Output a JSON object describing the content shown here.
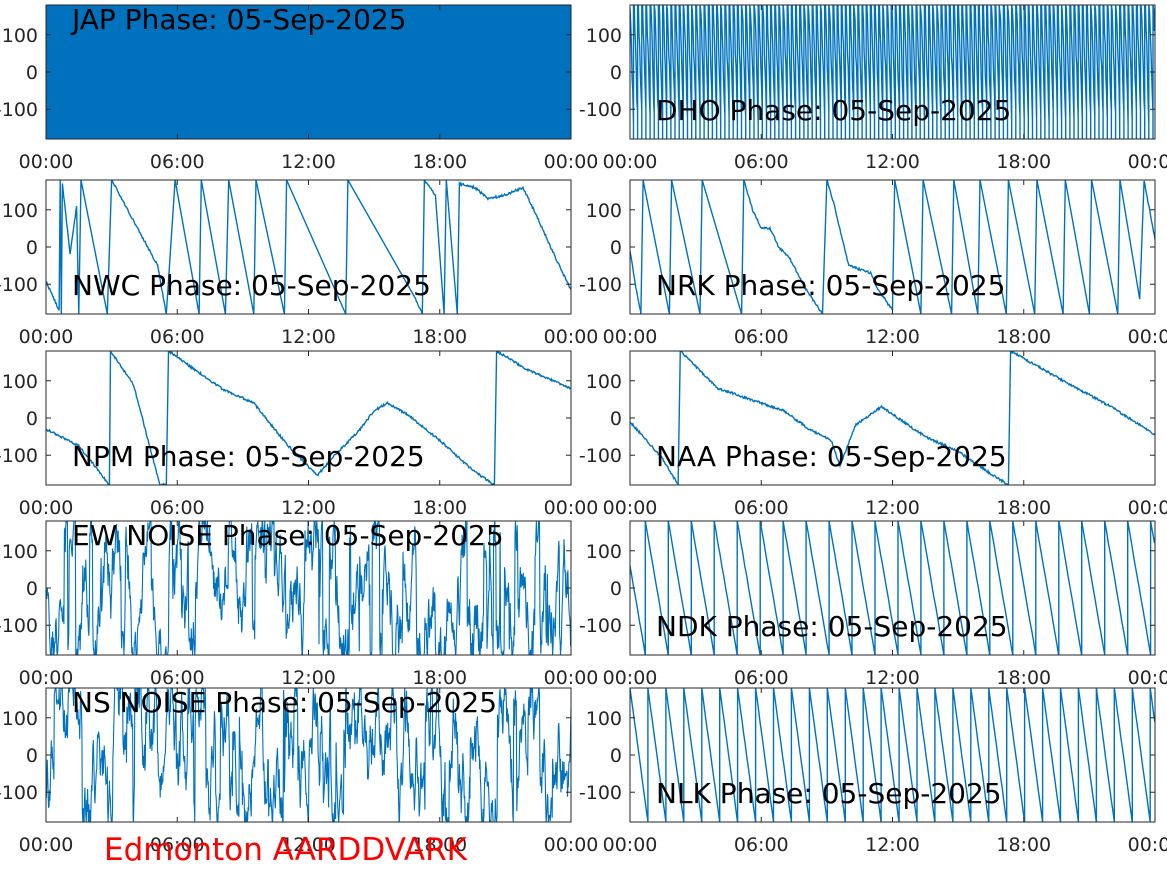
{
  "footer": {
    "station_label": "Edmonton AARDDVARK",
    "color": "#ff0000"
  },
  "style": {
    "series_color": "#0072bd",
    "axis_color": "#262626"
  },
  "chart_data": [
    {
      "type": "line",
      "title": "JAP Phase: 05-Sep-2025",
      "x_ticks": [
        "00:00",
        "06:00",
        "12:00",
        "18:00",
        "00:00"
      ],
      "y_ticks": [
        "100",
        "0",
        "-100"
      ],
      "ylim": [
        -180,
        180
      ],
      "xlim_hours": [
        0,
        24
      ],
      "pattern": "noise",
      "density": 2400,
      "dense_segments": [
        [
          0,
          2,
          1400
        ],
        [
          2,
          4.7,
          1800
        ],
        [
          4.7,
          7.2,
          1200
        ],
        [
          7.2,
          8.7,
          1500
        ],
        [
          8.7,
          11.5,
          1800
        ],
        [
          11.5,
          15,
          2100
        ],
        [
          15,
          17.2,
          1700
        ],
        [
          17.2,
          18,
          1200
        ],
        [
          18,
          24,
          2000
        ]
      ]
    },
    {
      "type": "line",
      "title": "DHO Phase: 05-Sep-2025",
      "x_ticks": [
        "00:00",
        "06:00",
        "12:00",
        "18:00",
        "00:00"
      ],
      "y_ticks": [
        "100",
        "0",
        "-100"
      ],
      "ylim": [
        -180,
        180
      ],
      "xlim_hours": [
        0,
        24
      ],
      "pattern": "fast-sawtooth",
      "period_hours": 0.19
    },
    {
      "type": "line",
      "title": "NWC Phase: 05-Sep-2025",
      "x_ticks": [
        "00:00",
        "06:00",
        "12:00",
        "18:00",
        "00:00"
      ],
      "y_ticks": [
        "100",
        "0",
        "-100"
      ],
      "ylim": [
        -180,
        180
      ],
      "xlim_hours": [
        0,
        24
      ],
      "pattern": "piecewise",
      "points": [
        [
          0,
          -92
        ],
        [
          0.6,
          -170
        ],
        [
          0.65,
          180
        ],
        [
          0.7,
          -180
        ],
        [
          0.75,
          170
        ],
        [
          1.1,
          -20
        ],
        [
          1.4,
          110
        ],
        [
          1.5,
          -180
        ],
        [
          1.6,
          180
        ],
        [
          2.8,
          -180
        ],
        [
          3.0,
          180
        ],
        [
          5.1,
          -50
        ],
        [
          5.5,
          -180
        ],
        [
          5.9,
          180
        ],
        [
          7.0,
          -180
        ],
        [
          7.1,
          180
        ],
        [
          8.2,
          -180
        ],
        [
          8.35,
          180
        ],
        [
          9.5,
          -180
        ],
        [
          9.6,
          180
        ],
        [
          10.9,
          -180
        ],
        [
          11.0,
          180
        ],
        [
          13.7,
          -180
        ],
        [
          13.8,
          180
        ],
        [
          16.9,
          -140
        ],
        [
          17.2,
          -180
        ],
        [
          17.3,
          180
        ],
        [
          17.8,
          140
        ],
        [
          18.2,
          -180
        ],
        [
          18.3,
          180
        ],
        [
          18.8,
          -180
        ],
        [
          18.9,
          170
        ],
        [
          19.6,
          160
        ],
        [
          20.2,
          130
        ],
        [
          21.0,
          140
        ],
        [
          21.8,
          160
        ],
        [
          22.3,
          100
        ],
        [
          23.3,
          -30
        ],
        [
          24,
          -115
        ]
      ]
    },
    {
      "type": "line",
      "title": "NRK Phase: 05-Sep-2025",
      "x_ticks": [
        "00:00",
        "06:00",
        "12:00",
        "18:00",
        "00:00"
      ],
      "y_ticks": [
        "100",
        "0",
        "-100"
      ],
      "ylim": [
        -180,
        180
      ],
      "xlim_hours": [
        0,
        24
      ],
      "pattern": "piecewise",
      "points": [
        [
          0,
          -10
        ],
        [
          0.3,
          -120
        ],
        [
          0.5,
          -180
        ],
        [
          0.6,
          180
        ],
        [
          1.8,
          -180
        ],
        [
          1.9,
          180
        ],
        [
          3.2,
          -180
        ],
        [
          3.3,
          180
        ],
        [
          5.1,
          -180
        ],
        [
          5.2,
          180
        ],
        [
          5.6,
          100
        ],
        [
          6.0,
          50
        ],
        [
          6.4,
          50
        ],
        [
          6.8,
          0
        ],
        [
          7.3,
          -30
        ],
        [
          8.0,
          -110
        ],
        [
          8.8,
          -180
        ],
        [
          9.0,
          180
        ],
        [
          9.3,
          120
        ],
        [
          10.0,
          -50
        ],
        [
          11.0,
          -70
        ],
        [
          11.3,
          -110
        ],
        [
          12.0,
          -170
        ],
        [
          12.1,
          180
        ],
        [
          13.3,
          -180
        ],
        [
          13.4,
          180
        ],
        [
          14.7,
          -180
        ],
        [
          14.8,
          180
        ],
        [
          15.9,
          -180
        ],
        [
          16.0,
          180
        ],
        [
          17.2,
          -180
        ],
        [
          17.3,
          180
        ],
        [
          18.5,
          -180
        ],
        [
          18.6,
          180
        ],
        [
          19.8,
          -180
        ],
        [
          19.9,
          180
        ],
        [
          21.0,
          -180
        ],
        [
          21.1,
          180
        ],
        [
          22.3,
          -180
        ],
        [
          22.4,
          180
        ],
        [
          23.3,
          -140
        ],
        [
          23.5,
          180
        ],
        [
          24,
          20
        ]
      ]
    },
    {
      "type": "line",
      "title": "NPM Phase: 05-Sep-2025",
      "x_ticks": [
        "00:00",
        "06:00",
        "12:00",
        "18:00",
        "00:00"
      ],
      "y_ticks": [
        "100",
        "0",
        "-100"
      ],
      "ylim": [
        -180,
        180
      ],
      "xlim_hours": [
        0,
        24
      ],
      "pattern": "piecewise",
      "points": [
        [
          0,
          -30
        ],
        [
          1.5,
          -75
        ],
        [
          2.9,
          -180
        ],
        [
          2.95,
          180
        ],
        [
          4.0,
          90
        ],
        [
          5.2,
          -180
        ],
        [
          5.5,
          -180
        ],
        [
          5.6,
          180
        ],
        [
          8.0,
          80
        ],
        [
          9.5,
          40
        ],
        [
          11.0,
          -70
        ],
        [
          12.4,
          -155
        ],
        [
          13.2,
          -100
        ],
        [
          14.3,
          -35
        ],
        [
          15.0,
          20
        ],
        [
          15.6,
          40
        ],
        [
          16.5,
          10
        ],
        [
          18.0,
          -60
        ],
        [
          19.5,
          -140
        ],
        [
          20.5,
          -180
        ],
        [
          20.6,
          180
        ],
        [
          22.0,
          130
        ],
        [
          24,
          80
        ]
      ]
    },
    {
      "type": "line",
      "title": "NAA Phase: 05-Sep-2025",
      "x_ticks": [
        "00:00",
        "06:00",
        "12:00",
        "18:00",
        "00:00"
      ],
      "y_ticks": [
        "100",
        "0",
        "-100"
      ],
      "ylim": [
        -180,
        180
      ],
      "xlim_hours": [
        0,
        24
      ],
      "pattern": "piecewise",
      "points": [
        [
          0,
          -10
        ],
        [
          1.5,
          -110
        ],
        [
          2.2,
          -180
        ],
        [
          2.3,
          180
        ],
        [
          4.0,
          80
        ],
        [
          5.5,
          50
        ],
        [
          7.0,
          20
        ],
        [
          8.2,
          -30
        ],
        [
          9.2,
          -60
        ],
        [
          9.6,
          -130
        ],
        [
          10.3,
          -20
        ],
        [
          11.0,
          10
        ],
        [
          11.5,
          30
        ],
        [
          13.5,
          -50
        ],
        [
          15.0,
          -90
        ],
        [
          16.5,
          -150
        ],
        [
          17.3,
          -180
        ],
        [
          17.4,
          180
        ],
        [
          19.5,
          110
        ],
        [
          22.0,
          30
        ],
        [
          24,
          -45
        ]
      ]
    },
    {
      "type": "line",
      "title": "EW NOISE Phase: 05-Sep-2025",
      "x_ticks": [
        "00:00",
        "06:00",
        "12:00",
        "18:00",
        "00:00"
      ],
      "y_ticks": [
        "100",
        "0",
        "-100"
      ],
      "ylim": [
        -180,
        180
      ],
      "xlim_hours": [
        0,
        24
      ],
      "pattern": "noise",
      "density": 1200
    },
    {
      "type": "line",
      "title": "NDK Phase: 05-Sep-2025",
      "x_ticks": [
        "00:00",
        "06:00",
        "12:00",
        "18:00",
        "00:00"
      ],
      "y_ticks": [
        "100",
        "0",
        "-100"
      ],
      "ylim": [
        -180,
        180
      ],
      "xlim_hours": [
        0,
        24
      ],
      "pattern": "sawtooth",
      "period_hours": 1.05,
      "start_value": 60
    },
    {
      "type": "line",
      "title": "NS NOISE Phase: 05-Sep-2025",
      "x_ticks": [
        "00:00",
        "06:00",
        "12:00",
        "18:00",
        "00:00"
      ],
      "y_ticks": [
        "100",
        "0",
        "-100"
      ],
      "ylim": [
        -180,
        180
      ],
      "xlim_hours": [
        0,
        24
      ],
      "pattern": "noise",
      "density": 1200
    },
    {
      "type": "line",
      "title": "NLK Phase: 05-Sep-2025",
      "x_ticks": [
        "00:00",
        "06:00",
        "12:00",
        "18:00",
        "00:00"
      ],
      "y_ticks": [
        "100",
        "0",
        "-100"
      ],
      "ylim": [
        -180,
        180
      ],
      "xlim_hours": [
        0,
        24
      ],
      "pattern": "sawtooth",
      "period_hours": 0.82,
      "start_value": 180
    }
  ]
}
